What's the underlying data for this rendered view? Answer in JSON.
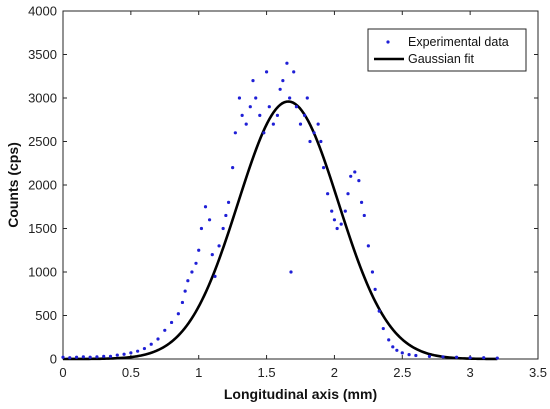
{
  "chart_data": {
    "type": "scatter",
    "title": "",
    "xlabel": "Longitudinal axis (mm)",
    "ylabel": "Counts (cps)",
    "xlim": [
      0,
      3.5
    ],
    "ylim": [
      0,
      4000
    ],
    "x_ticks": [
      0,
      0.5,
      1,
      1.5,
      2,
      2.5,
      3,
      3.5
    ],
    "x_tick_labels": [
      "0",
      "0.5",
      "1",
      "1.5",
      "2",
      "2.5",
      "3",
      "3.5"
    ],
    "y_ticks": [
      0,
      500,
      1000,
      1500,
      2000,
      2500,
      3000,
      3500,
      4000
    ],
    "y_tick_labels": [
      "0",
      "500",
      "1000",
      "1500",
      "2000",
      "2500",
      "3000",
      "3500",
      "4000"
    ],
    "grid": false,
    "legend_position": "top-right",
    "series": [
      {
        "name": "Experimental data",
        "kind": "scatter",
        "color": "#1f1fd6",
        "x": [
          0.0,
          0.05,
          0.1,
          0.15,
          0.2,
          0.25,
          0.3,
          0.35,
          0.4,
          0.45,
          0.5,
          0.55,
          0.6,
          0.65,
          0.7,
          0.75,
          0.8,
          0.85,
          0.88,
          0.9,
          0.92,
          0.95,
          0.98,
          1.0,
          1.02,
          1.05,
          1.08,
          1.1,
          1.12,
          1.15,
          1.18,
          1.2,
          1.22,
          1.25,
          1.27,
          1.3,
          1.32,
          1.35,
          1.38,
          1.4,
          1.42,
          1.45,
          1.48,
          1.5,
          1.52,
          1.55,
          1.58,
          1.6,
          1.62,
          1.65,
          1.67,
          1.68,
          1.7,
          1.72,
          1.75,
          1.78,
          1.8,
          1.82,
          1.85,
          1.88,
          1.9,
          1.92,
          1.95,
          1.98,
          2.0,
          2.02,
          2.05,
          2.08,
          2.1,
          2.12,
          2.15,
          2.18,
          2.2,
          2.22,
          2.25,
          2.28,
          2.3,
          2.33,
          2.36,
          2.4,
          2.43,
          2.46,
          2.5,
          2.55,
          2.6,
          2.7,
          2.8,
          2.9,
          3.0,
          3.1,
          3.2
        ],
        "y": [
          20,
          15,
          20,
          25,
          20,
          25,
          30,
          30,
          45,
          55,
          70,
          90,
          120,
          170,
          230,
          330,
          420,
          520,
          650,
          780,
          900,
          1000,
          1100,
          1250,
          1500,
          1750,
          1600,
          1200,
          950,
          1300,
          1500,
          1650,
          1800,
          2200,
          2600,
          3000,
          2800,
          2700,
          2900,
          3200,
          3000,
          2800,
          2600,
          3300,
          2900,
          2700,
          2800,
          3100,
          3200,
          3400,
          3000,
          1000,
          3300,
          2900,
          2700,
          2800,
          3000,
          2500,
          2600,
          2700,
          2500,
          2200,
          1900,
          1700,
          1600,
          1500,
          1550,
          1700,
          1900,
          2100,
          2150,
          2050,
          1800,
          1650,
          1300,
          1000,
          800,
          550,
          350,
          220,
          140,
          100,
          70,
          50,
          40,
          30,
          25,
          20,
          15,
          15,
          10
        ]
      },
      {
        "name": "Gaussian fit",
        "kind": "line",
        "color": "#000000",
        "amplitude": 2960,
        "mean": 1.66,
        "sigma": 0.37,
        "x_range": [
          0,
          3.2
        ]
      }
    ]
  }
}
